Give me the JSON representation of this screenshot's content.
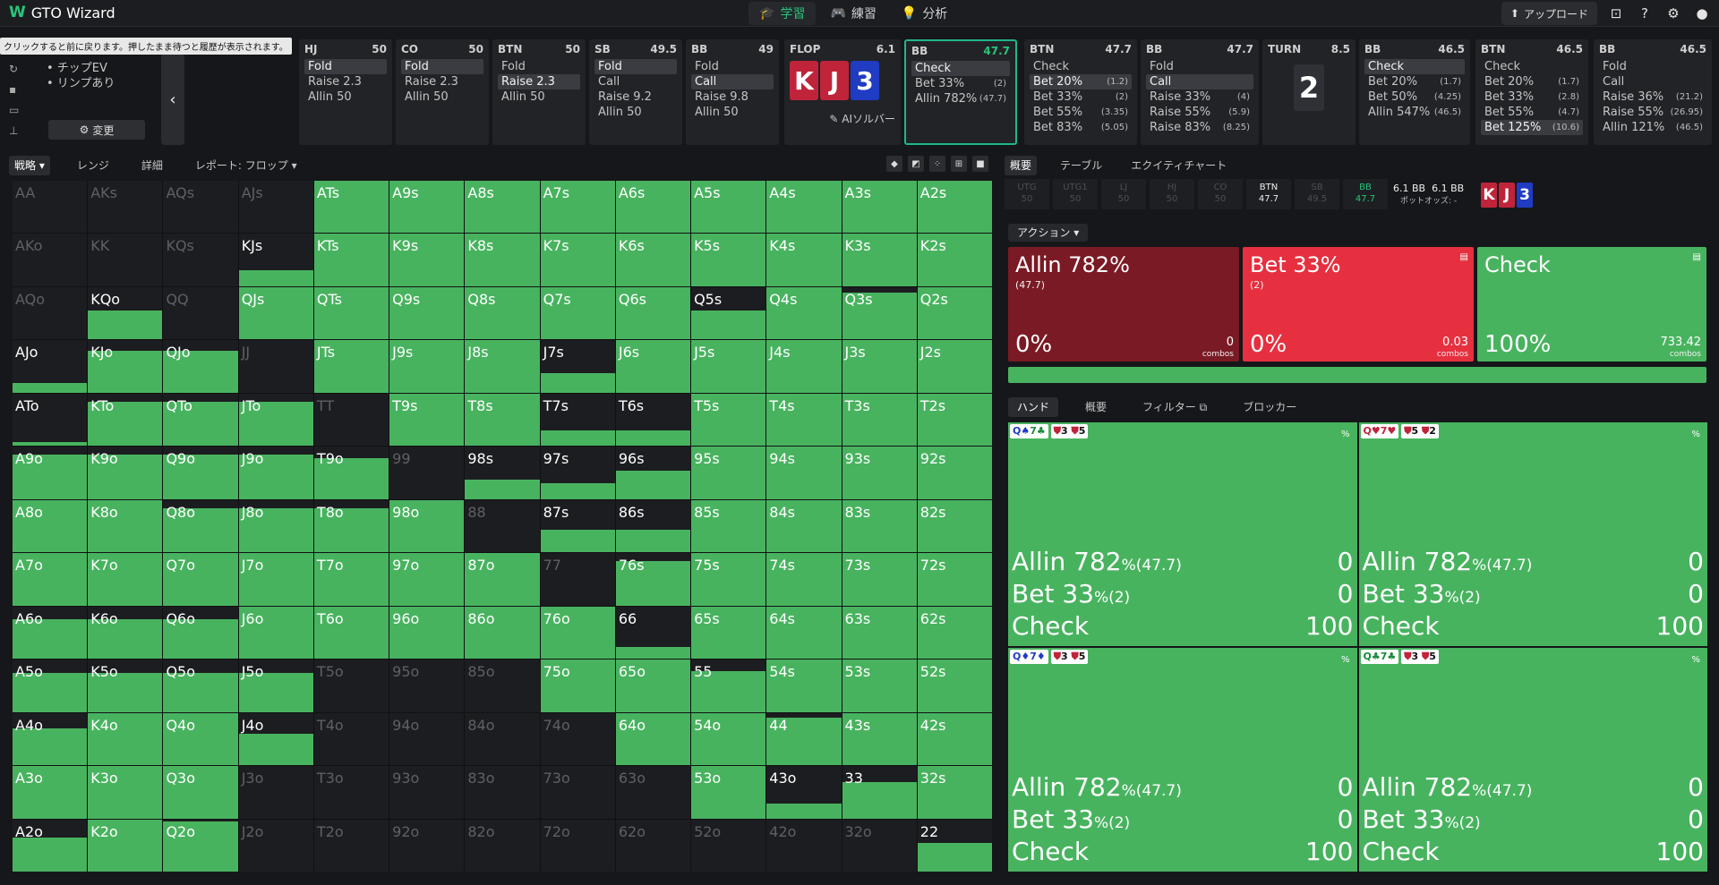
{
  "app": {
    "title": "GTO Wizard"
  },
  "nav": [
    {
      "label": "学習",
      "icon": "graduation-cap-icon"
    },
    {
      "label": "練習",
      "icon": "gamepad-icon"
    },
    {
      "label": "分析",
      "icon": "lightbulb-icon"
    }
  ],
  "top_right": {
    "upload_label": "アップロード"
  },
  "tooltip": "クリックすると前に戻ります。押したまま待つと履歴が表示されます。",
  "left_tools": {
    "chips": [
      "• チップEV",
      "• リンプあり"
    ],
    "change_label": "変更"
  },
  "positions": [
    {
      "name": "HJ",
      "stack": "50",
      "actions": [
        {
          "label": "Fold",
          "hl": true
        },
        {
          "label": "Raise 2.3"
        },
        {
          "label": "Allin 50"
        }
      ]
    },
    {
      "name": "CO",
      "stack": "50",
      "actions": [
        {
          "label": "Fold",
          "hl": true
        },
        {
          "label": "Raise 2.3"
        },
        {
          "label": "Allin 50"
        }
      ]
    },
    {
      "name": "BTN",
      "stack": "50",
      "actions": [
        {
          "label": "Fold"
        },
        {
          "label": "Raise 2.3",
          "hl": true
        },
        {
          "label": "Allin 50"
        }
      ]
    },
    {
      "name": "SB",
      "stack": "49.5",
      "actions": [
        {
          "label": "Fold",
          "hl": true
        },
        {
          "label": "Call"
        },
        {
          "label": "Raise 9.2"
        },
        {
          "label": "Allin 50"
        }
      ]
    },
    {
      "name": "BB",
      "stack": "49",
      "actions": [
        {
          "label": "Fold"
        },
        {
          "label": "Call",
          "hl": true
        },
        {
          "label": "Raise 9.8"
        },
        {
          "label": "Allin 50"
        }
      ]
    }
  ],
  "flop": {
    "label": "FLOP",
    "pot": "6.1",
    "cards": [
      {
        "rank": "K",
        "color": "red"
      },
      {
        "rank": "J",
        "color": "red"
      },
      {
        "rank": "3",
        "color": "blue"
      }
    ],
    "ai_label": "AIソルバー"
  },
  "bb_node": {
    "name": "BB",
    "stack": "47.7",
    "actions": [
      {
        "label": "Check",
        "sub": "",
        "hl": true
      },
      {
        "label": "Bet 33%",
        "sub": "(2)"
      },
      {
        "label": "Allin 782%",
        "sub": "(47.7)"
      }
    ]
  },
  "btn_node1": {
    "name": "BTN",
    "stack": "47.7",
    "actions": [
      {
        "label": "Check",
        "sub": ""
      },
      {
        "label": "Bet 20%",
        "sub": "(1.2)",
        "hl": true
      },
      {
        "label": "Bet 33%",
        "sub": "(2)"
      },
      {
        "label": "Bet 55%",
        "sub": "(3.35)"
      },
      {
        "label": "Bet 83%",
        "sub": "(5.05)"
      }
    ]
  },
  "bb_node2": {
    "name": "BB",
    "stack": "47.7",
    "actions": [
      {
        "label": "Fold",
        "sub": ""
      },
      {
        "label": "Call",
        "sub": "",
        "hl": true
      },
      {
        "label": "Raise 33%",
        "sub": "(4)"
      },
      {
        "label": "Raise 55%",
        "sub": "(5.9)"
      },
      {
        "label": "Raise 83%",
        "sub": "(8.25)"
      }
    ]
  },
  "turn": {
    "label": "TURN",
    "pot": "8.5",
    "card": "2"
  },
  "bb_node3": {
    "name": "BB",
    "stack": "46.5",
    "actions": [
      {
        "label": "Check",
        "sub": "",
        "hl": true
      },
      {
        "label": "Bet 20%",
        "sub": "(1.7)"
      },
      {
        "label": "Bet 50%",
        "sub": "(4.25)"
      },
      {
        "label": "Allin 547%",
        "sub": "(46.5)"
      }
    ]
  },
  "btn_node2": {
    "name": "BTN",
    "stack": "46.5",
    "actions": [
      {
        "label": "Check",
        "sub": ""
      },
      {
        "label": "Bet 20%",
        "sub": "(1.7)"
      },
      {
        "label": "Bet 33%",
        "sub": "(2.8)"
      },
      {
        "label": "Bet 55%",
        "sub": "(4.7)"
      },
      {
        "label": "Bet 125%",
        "sub": "(10.6)",
        "hl": true
      }
    ]
  },
  "bb_node4": {
    "name": "BB",
    "stack": "46.5",
    "actions": [
      {
        "label": "Fold",
        "sub": ""
      },
      {
        "label": "Call",
        "sub": ""
      },
      {
        "label": "Raise 36%",
        "sub": "(21.2)"
      },
      {
        "label": "Raise 55%",
        "sub": "(26.95)"
      },
      {
        "label": "Allin 121%",
        "sub": "(46.5)"
      }
    ]
  },
  "left_tabs": [
    "戦略",
    "レンジ",
    "詳細",
    "レポート: フロップ"
  ],
  "grid": {
    "rows": [
      [
        [
          "AA",
          0
        ],
        [
          "AKs",
          0
        ],
        [
          "AQs",
          0
        ],
        [
          "AJs",
          0
        ],
        [
          "ATs",
          100
        ],
        [
          "A9s",
          100
        ],
        [
          "A8s",
          100
        ],
        [
          "A7s",
          100
        ],
        [
          "A6s",
          100
        ],
        [
          "A5s",
          100
        ],
        [
          "A4s",
          100
        ],
        [
          "A3s",
          100
        ],
        [
          "A2s",
          100
        ]
      ],
      [
        [
          "AKo",
          0
        ],
        [
          "KK",
          0
        ],
        [
          "KQs",
          0
        ],
        [
          "KJs",
          30
        ],
        [
          "KTs",
          100
        ],
        [
          "K9s",
          100
        ],
        [
          "K8s",
          100
        ],
        [
          "K7s",
          100
        ],
        [
          "K6s",
          100
        ],
        [
          "K5s",
          100
        ],
        [
          "K4s",
          100
        ],
        [
          "K3s",
          100
        ],
        [
          "K2s",
          100
        ]
      ],
      [
        [
          "AQo",
          0
        ],
        [
          "KQo",
          55
        ],
        [
          "QQ",
          0
        ],
        [
          "QJs",
          100
        ],
        [
          "QTs",
          100
        ],
        [
          "Q9s",
          100
        ],
        [
          "Q8s",
          100
        ],
        [
          "Q7s",
          100
        ],
        [
          "Q6s",
          100
        ],
        [
          "Q5s",
          55
        ],
        [
          "Q4s",
          100
        ],
        [
          "Q3s",
          90
        ],
        [
          "Q2s",
          100
        ]
      ],
      [
        [
          "AJo",
          18
        ],
        [
          "KJo",
          80
        ],
        [
          "QJo",
          80
        ],
        [
          "JJ",
          0
        ],
        [
          "JTs",
          100
        ],
        [
          "J9s",
          100
        ],
        [
          "J8s",
          100
        ],
        [
          "J7s",
          38
        ],
        [
          "J6s",
          100
        ],
        [
          "J5s",
          100
        ],
        [
          "J4s",
          100
        ],
        [
          "J3s",
          100
        ],
        [
          "J2s",
          100
        ]
      ],
      [
        [
          "ATo",
          8
        ],
        [
          "KTo",
          85
        ],
        [
          "QTo",
          85
        ],
        [
          "JTo",
          85
        ],
        [
          "TT",
          0
        ],
        [
          "T9s",
          100
        ],
        [
          "T8s",
          100
        ],
        [
          "T7s",
          30
        ],
        [
          "T6s",
          30
        ],
        [
          "T5s",
          100
        ],
        [
          "T4s",
          100
        ],
        [
          "T3s",
          100
        ],
        [
          "T2s",
          100
        ]
      ],
      [
        [
          "A9o",
          85
        ],
        [
          "K9o",
          85
        ],
        [
          "Q9o",
          85
        ],
        [
          "J9o",
          85
        ],
        [
          "T9o",
          78
        ],
        [
          "99",
          0
        ],
        [
          "98s",
          38
        ],
        [
          "97s",
          30
        ],
        [
          "96s",
          55
        ],
        [
          "95s",
          100
        ],
        [
          "94s",
          100
        ],
        [
          "93s",
          100
        ],
        [
          "92s",
          100
        ]
      ],
      [
        [
          "A8o",
          100
        ],
        [
          "K8o",
          100
        ],
        [
          "Q8o",
          85
        ],
        [
          "J8o",
          85
        ],
        [
          "T8o",
          85
        ],
        [
          "98o",
          100
        ],
        [
          "88",
          0
        ],
        [
          "87s",
          43
        ],
        [
          "86s",
          43
        ],
        [
          "85s",
          100
        ],
        [
          "84s",
          100
        ],
        [
          "83s",
          100
        ],
        [
          "82s",
          100
        ]
      ],
      [
        [
          "A7o",
          100
        ],
        [
          "K7o",
          100
        ],
        [
          "Q7o",
          100
        ],
        [
          "J7o",
          100
        ],
        [
          "T7o",
          100
        ],
        [
          "97o",
          100
        ],
        [
          "87o",
          100
        ],
        [
          "77",
          0
        ],
        [
          "76s",
          85
        ],
        [
          "75s",
          100
        ],
        [
          "74s",
          100
        ],
        [
          "73s",
          100
        ],
        [
          "72s",
          100
        ]
      ],
      [
        [
          "A6o",
          75
        ],
        [
          "K6o",
          75
        ],
        [
          "Q6o",
          75
        ],
        [
          "J6o",
          100
        ],
        [
          "T6o",
          100
        ],
        [
          "96o",
          100
        ],
        [
          "86o",
          100
        ],
        [
          "76o",
          100
        ],
        [
          "66",
          22
        ],
        [
          "65s",
          100
        ],
        [
          "64s",
          100
        ],
        [
          "63s",
          100
        ],
        [
          "62s",
          100
        ]
      ],
      [
        [
          "A5o",
          75
        ],
        [
          "K5o",
          75
        ],
        [
          "Q5o",
          75
        ],
        [
          "J5o",
          75
        ],
        [
          "T5o",
          0
        ],
        [
          "95o",
          0
        ],
        [
          "85o",
          0
        ],
        [
          "75o",
          100
        ],
        [
          "65o",
          100
        ],
        [
          "55",
          78
        ],
        [
          "54s",
          100
        ],
        [
          "53s",
          100
        ],
        [
          "52s",
          100
        ]
      ],
      [
        [
          "A4o",
          70
        ],
        [
          "K4o",
          100
        ],
        [
          "Q4o",
          100
        ],
        [
          "J4o",
          60
        ],
        [
          "T4o",
          0
        ],
        [
          "94o",
          0
        ],
        [
          "84o",
          0
        ],
        [
          "74o",
          0
        ],
        [
          "64o",
          100
        ],
        [
          "54o",
          100
        ],
        [
          "44",
          90
        ],
        [
          "43s",
          100
        ],
        [
          "42s",
          100
        ]
      ],
      [
        [
          "A3o",
          100
        ],
        [
          "K3o",
          100
        ],
        [
          "Q3o",
          100
        ],
        [
          "J3o",
          0
        ],
        [
          "T3o",
          0
        ],
        [
          "93o",
          0
        ],
        [
          "83o",
          0
        ],
        [
          "73o",
          0
        ],
        [
          "63o",
          0
        ],
        [
          "53o",
          100
        ],
        [
          "43o",
          28
        ],
        [
          "33",
          70
        ],
        [
          "32s",
          100
        ]
      ],
      [
        [
          "A2o",
          65
        ],
        [
          "K2o",
          100
        ],
        [
          "Q2o",
          95
        ],
        [
          "J2o",
          0
        ],
        [
          "T2o",
          0
        ],
        [
          "92o",
          0
        ],
        [
          "82o",
          0
        ],
        [
          "72o",
          0
        ],
        [
          "62o",
          0
        ],
        [
          "52o",
          0
        ],
        [
          "42o",
          0
        ],
        [
          "32o",
          0
        ],
        [
          "22",
          55
        ]
      ]
    ],
    "dim": [
      "AA",
      "AKs",
      "AQs",
      "AJs",
      "AKo",
      "KK",
      "KQs",
      "AQo",
      "QQ",
      "JJ",
      "TT",
      "99",
      "88",
      "77",
      "T5o",
      "95o",
      "85o",
      "T4o",
      "94o",
      "84o",
      "74o",
      "J3o",
      "T3o",
      "93o",
      "83o",
      "73o",
      "63o",
      "J2o",
      "T2o",
      "92o",
      "82o",
      "72o",
      "62o",
      "52o",
      "42o",
      "32o"
    ]
  },
  "right_tabs": [
    "概要",
    "テーブル",
    "エクイティチャート"
  ],
  "seats": [
    {
      "name": "UTG",
      "stack": "50",
      "state": "off"
    },
    {
      "name": "UTG1",
      "stack": "50",
      "state": "off"
    },
    {
      "name": "LJ",
      "stack": "50",
      "state": "off"
    },
    {
      "name": "HJ",
      "stack": "50",
      "state": "off"
    },
    {
      "name": "CO",
      "stack": "50",
      "state": "off"
    },
    {
      "name": "BTN",
      "stack": "47.7",
      "state": "on"
    },
    {
      "name": "SB",
      "stack": "49.5",
      "state": "off"
    },
    {
      "name": "BB",
      "stack": "47.7",
      "state": "bb"
    }
  ],
  "pot": {
    "main": "6.1 BB",
    "side": "6.1 BB",
    "odds_label": "ポットオッズ: -"
  },
  "board_mini": [
    {
      "rank": "K",
      "color": "red"
    },
    {
      "rank": "J",
      "color": "red"
    },
    {
      "rank": "3",
      "color": "blue"
    }
  ],
  "action_dropdown": "アクション",
  "action_cards": [
    {
      "name": "Allin 782%",
      "sub": "(47.7)",
      "pct": "0%",
      "combos": "0",
      "combos_label": "combos",
      "color": "#7a1a24"
    },
    {
      "name": "Bet 33%",
      "sub": "(2)",
      "pct": "0%",
      "combos": "0.03",
      "combos_label": "combos",
      "color": "#e6303f"
    },
    {
      "name": "Check",
      "sub": "",
      "pct": "100%",
      "combos": "733.42",
      "combos_label": "combos",
      "color": "#48b35f"
    }
  ],
  "hand_tabs": [
    "ハンド",
    "概要",
    "フィルター",
    "ブロッカー"
  ],
  "hand_cells": [
    {
      "combo": [
        [
          "Q",
          "♠",
          "b"
        ],
        [
          "7",
          "♣",
          "g"
        ]
      ],
      "blockers": [
        [
          "3",
          "r"
        ],
        [
          "5",
          "r"
        ]
      ]
    },
    {
      "combo": [
        [
          "Q",
          "♥",
          "r"
        ],
        [
          "7",
          "♥",
          "r"
        ]
      ],
      "blockers": [
        [
          "5",
          "r"
        ],
        [
          "2",
          "r"
        ]
      ]
    },
    {
      "combo": [
        [
          "Q",
          "♦",
          "b"
        ],
        [
          "7",
          "♦",
          "b"
        ]
      ],
      "blockers": [
        [
          "3",
          "r"
        ],
        [
          "5",
          "r"
        ]
      ]
    },
    {
      "combo": [
        [
          "Q",
          "♣",
          "g"
        ],
        [
          "7",
          "♣",
          "g"
        ]
      ],
      "blockers": [
        [
          "3",
          "r"
        ],
        [
          "5",
          "r"
        ]
      ]
    }
  ],
  "hand_pct_label": "%",
  "hand_rows": [
    {
      "name": "Allin 782",
      "sub": "%(47.7)",
      "val": "0"
    },
    {
      "name": "Bet 33",
      "sub": "%(2)",
      "val": "0"
    },
    {
      "name": "Check",
      "sub": "",
      "val": "100"
    }
  ]
}
